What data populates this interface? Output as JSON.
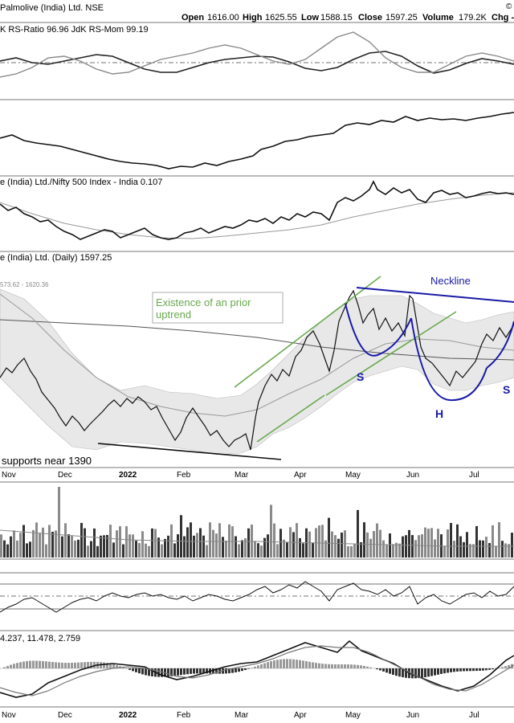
{
  "header": {
    "title": "Palmolive (India) Ltd. NSE",
    "open_label": "Open",
    "open": "1616.00",
    "high_label": "High",
    "high": "1625.55",
    "low_label": "Low",
    "low": "1588.15",
    "close_label": "Close",
    "close": "1597.25",
    "volume_label": "Volume",
    "volume": "179.2K",
    "chg_label": "Chg -",
    "corner": "©"
  },
  "panels": {
    "rrg": "K RS-Ratio 96.96 JdK RS-Mom 99.19",
    "ratio": "e (India) Ltd./Nifty 500 Index - India 0.107",
    "price": "e (India) Ltd. (Daily) 1597.25",
    "bb": "573.62 - 1620.36",
    "macd": "4.237, 11.478, 2.759"
  },
  "annotations": {
    "prior_line1": "Existence of an prior",
    "prior_line2": "uptrend",
    "neckline": "Neckline",
    "s_left": "S",
    "head": "H",
    "s_right": "S",
    "support": "supports near 1390"
  },
  "x_axis": {
    "months": [
      "Nov",
      "Dec",
      "2022",
      "Feb",
      "Mar",
      "Apr",
      "May",
      "Jun",
      "Jul"
    ]
  },
  "chart_data": {
    "type": "line",
    "x": [
      "Nov",
      "Dec",
      "Jan 2022",
      "Feb",
      "Mar",
      "Apr",
      "May",
      "Jun",
      "Jul"
    ],
    "series": [
      {
        "name": "Close",
        "values": [
          1520,
          1470,
          1440,
          1430,
          1460,
          1560,
          1650,
          1560,
          1600
        ]
      }
    ],
    "volume_scale": "relative",
    "colors": {
      "trend": "#6aa84f",
      "pattern": "#1a1aa8",
      "band": "#d9d9d9"
    }
  }
}
